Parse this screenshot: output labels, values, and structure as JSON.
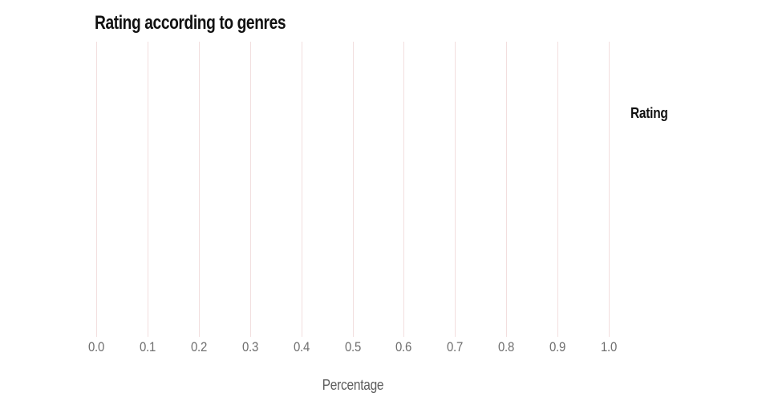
{
  "chart_data": {
    "type": "bar",
    "title": "Rating according to genres",
    "xlabel": "Percentage",
    "ylabel": "",
    "legend_title": "Rating",
    "legend_position": "right",
    "xlim": [
      0.0,
      1.0
    ],
    "xticks": [
      "0.0",
      "0.1",
      "0.2",
      "0.3",
      "0.4",
      "0.5",
      "0.6",
      "0.7",
      "0.8",
      "0.9",
      "1.0"
    ],
    "categories": [],
    "series": [],
    "grid": "vertical-gridlines-only"
  },
  "colors": {
    "background": "#ffffff",
    "gridline": "#f2dede",
    "title": "#111111",
    "tick_label": "#6e6e6e",
    "axis_label": "#5c5c5c",
    "legend_title": "#111111"
  }
}
